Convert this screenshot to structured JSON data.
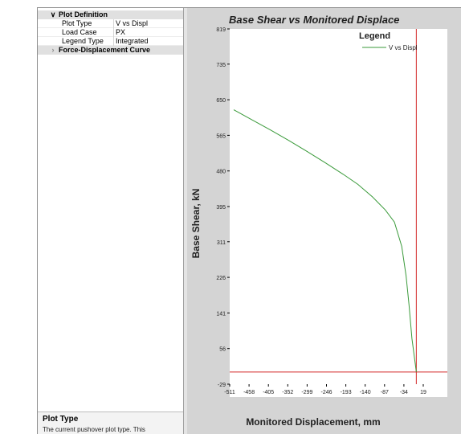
{
  "property_grid": {
    "category_plot_definition": "Plot Definition",
    "properties": [
      {
        "key": "Plot Type",
        "value": "V vs Displ"
      },
      {
        "key": "Load Case",
        "value": "PX"
      },
      {
        "key": "Legend Type",
        "value": "Integrated"
      }
    ],
    "category_curve": "Force-Displacement Curve",
    "description_title": "Plot Type",
    "description_text": "The current pushover plot type.  This"
  },
  "plot": {
    "title": "Base Shear vs Monitored Displace",
    "legend_title": "Legend",
    "colors": {
      "curve": "#3a9a3a",
      "reference_lines": "#d42a2a",
      "plot_bg": "#ffffff",
      "panel_bg": "#d4d4d4"
    }
  },
  "chart_data": {
    "type": "line",
    "title": "Base Shear vs Monitored Displace",
    "xlabel": "Monitored Displacement, mm",
    "ylabel": "Base Shear, kN",
    "xlim": [
      -511,
      19
    ],
    "ylim": [
      -29,
      819
    ],
    "x_ticks": [
      -511,
      -458,
      -405,
      -352,
      -299,
      -246,
      -193,
      -140,
      -87,
      -34,
      19
    ],
    "y_ticks": [
      -29,
      56,
      141,
      226,
      311,
      395,
      480,
      565,
      650,
      735,
      819
    ],
    "grid": false,
    "legend_position": "top-right",
    "series": [
      {
        "name": "V vs Displ",
        "color": "#3a9a3a",
        "x": [
          -500,
          -450,
          -400,
          -350,
          -300,
          -250,
          -200,
          -160,
          -120,
          -85,
          -60,
          -40,
          -28,
          -20,
          -12,
          0
        ],
        "y": [
          626,
          602,
          578,
          553,
          527,
          500,
          472,
          448,
          418,
          387,
          358,
          300,
          230,
          160,
          80,
          0
        ]
      }
    ],
    "reference_lines": {
      "vertical_x": 0,
      "horizontal_y": 0
    }
  }
}
